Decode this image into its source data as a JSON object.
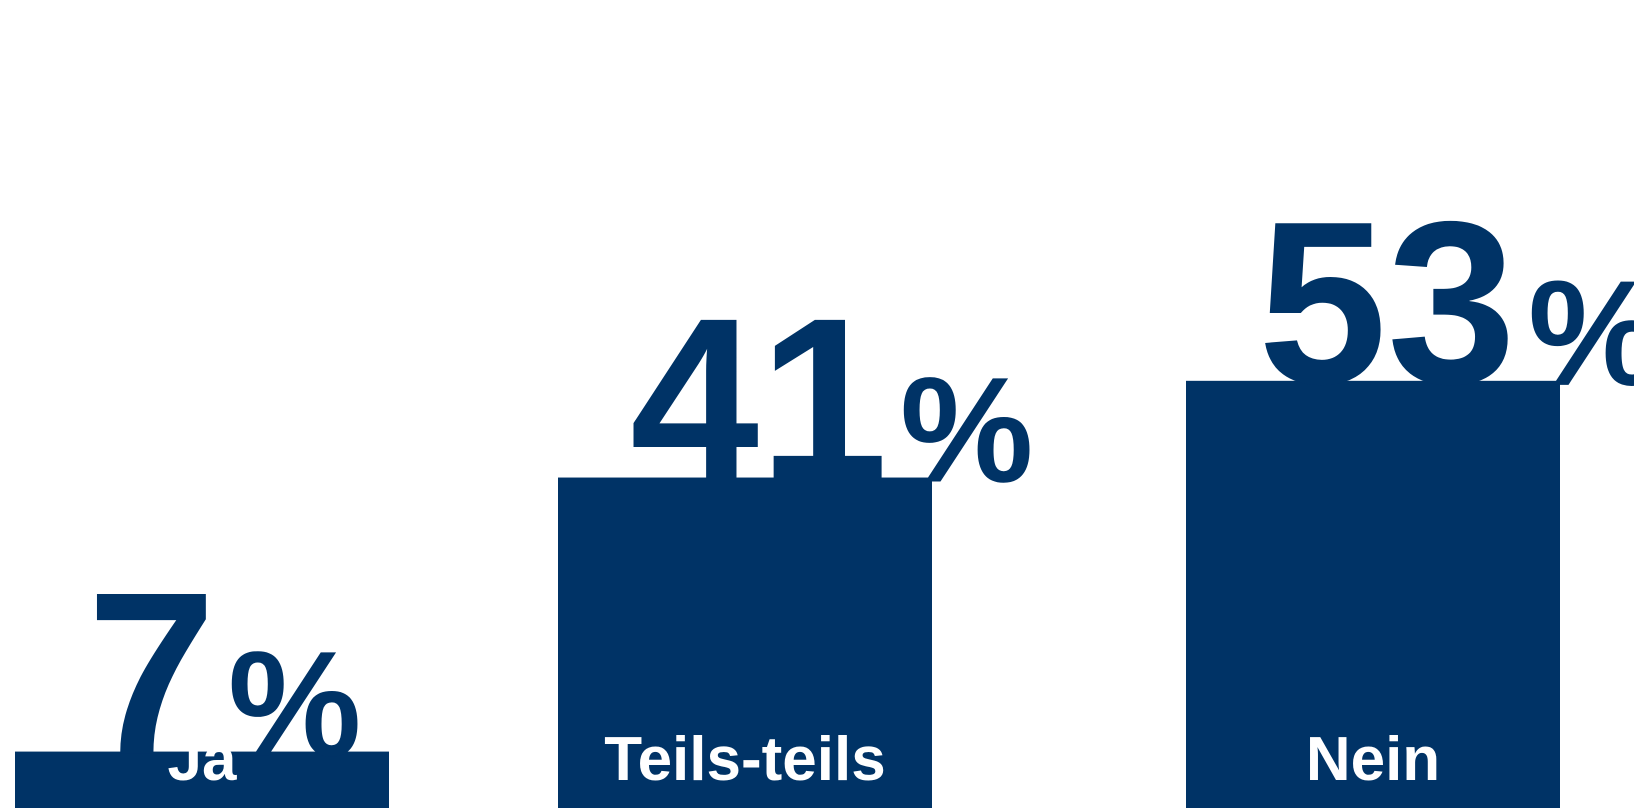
{
  "chart_data": {
    "type": "bar",
    "categories": [
      "Ja",
      "Teils-teils",
      "Nein"
    ],
    "values": [
      7,
      41,
      53
    ],
    "data_labels": [
      "7",
      "41",
      "53"
    ],
    "unit": "%",
    "ylim": [
      0,
      100
    ],
    "grid": false,
    "legend": "none",
    "colors": {
      "bar": "#003366",
      "category_label": "#ffffff",
      "value_label": "#003366"
    }
  }
}
